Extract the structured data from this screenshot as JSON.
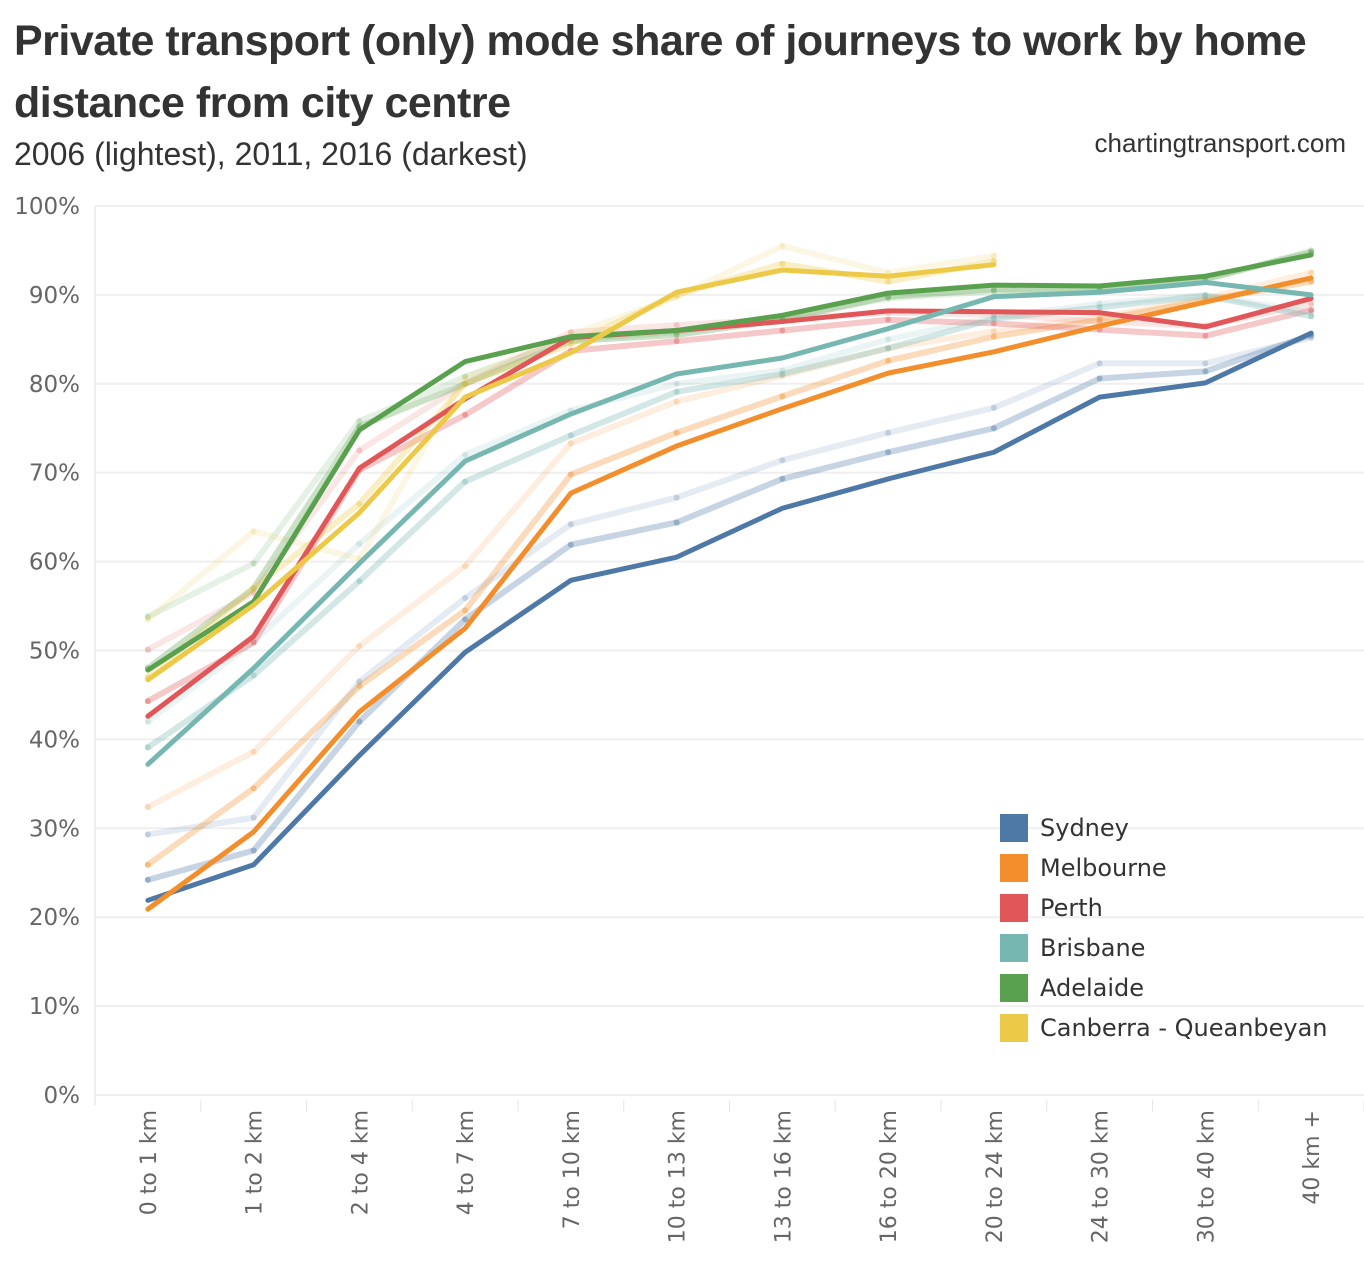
{
  "header": {
    "title": "Private transport (only) mode share of journeys to work by home distance from city centre",
    "subtitle": "2006 (lightest), 2011, 2016 (darkest)",
    "credit": "chartingtransport.com"
  },
  "chart_data": {
    "type": "line",
    "title": "Private transport (only) mode share of journeys to work by home distance from city centre",
    "subtitle": "2006 (lightest), 2011, 2016 (darkest)",
    "xlabel": "",
    "ylabel": "",
    "ylim": [
      0,
      100
    ],
    "y_ticks": [
      "0%",
      "10%",
      "20%",
      "30%",
      "40%",
      "50%",
      "60%",
      "70%",
      "80%",
      "90%",
      "100%"
    ],
    "grid": true,
    "legend_position": "bottom-right",
    "categories": [
      "0 to 1 km",
      "1 to 2 km",
      "2 to 4 km",
      "4 to 7 km",
      "7 to 10 km",
      "10 to 13 km",
      "13 to 16 km",
      "16 to 20 km",
      "20 to 24 km",
      "24 to 30 km",
      "30 to 40 km",
      "40 km +"
    ],
    "years": [
      "2006",
      "2011",
      "2016"
    ],
    "year_opacity_note": "2006 lightest, 2016 darkest",
    "series": [
      {
        "name": "Sydney",
        "color": "#4e79a7",
        "values": {
          "2006": [
            29.3,
            31.2,
            46.5,
            55.9,
            64.2,
            67.2,
            71.4,
            74.5,
            77.3,
            82.3,
            82.3,
            85.2
          ],
          "2011": [
            24.2,
            27.5,
            42.0,
            53.5,
            61.9,
            64.4,
            69.3,
            72.3,
            75.0,
            80.6,
            81.4,
            85.5
          ],
          "2016": [
            21.9,
            25.9,
            38.2,
            49.8,
            57.9,
            60.5,
            66.0,
            69.3,
            72.3,
            78.5,
            80.1,
            85.7
          ]
        }
      },
      {
        "name": "Melbourne",
        "color": "#f28e2b",
        "values": {
          "2006": [
            32.4,
            38.6,
            50.5,
            59.5,
            73.3,
            78.0,
            80.9,
            84.0,
            85.9,
            87.5,
            89.6,
            92.5
          ],
          "2011": [
            25.9,
            34.5,
            46.0,
            54.5,
            69.8,
            74.5,
            78.6,
            82.6,
            85.3,
            87.2,
            89.4,
            91.5
          ],
          "2016": [
            20.9,
            29.6,
            43.1,
            52.5,
            67.7,
            73.0,
            77.2,
            81.2,
            83.6,
            86.5,
            89.2,
            91.9
          ]
        }
      },
      {
        "name": "Perth",
        "color": "#e15759",
        "values": {
          "2006": [
            50.1,
            56.5,
            72.5,
            80.0,
            85.8,
            86.6,
            87.3,
            88.0,
            87.8,
            87.0,
            86.5,
            89.0
          ],
          "2011": [
            44.3,
            50.9,
            70.3,
            76.5,
            83.7,
            84.8,
            86.0,
            87.2,
            86.8,
            86.1,
            85.4,
            88.3
          ],
          "2016": [
            42.6,
            51.6,
            70.5,
            78.3,
            85.2,
            86.0,
            87.0,
            88.2,
            88.1,
            88.0,
            86.4,
            89.6
          ]
        }
      },
      {
        "name": "Brisbane",
        "color": "#76b7b2",
        "values": {
          "2006": [
            42.0,
            51.0,
            62.0,
            72.0,
            77.0,
            80.0,
            81.5,
            85.0,
            87.5,
            89.0,
            90.0,
            88.0
          ],
          "2011": [
            39.1,
            47.2,
            57.8,
            69.0,
            74.2,
            79.1,
            81.1,
            84.0,
            87.3,
            88.6,
            89.9,
            87.6
          ],
          "2016": [
            37.2,
            48.0,
            59.8,
            71.3,
            76.6,
            81.1,
            82.9,
            86.2,
            89.8,
            90.3,
            91.4,
            90.0
          ]
        }
      },
      {
        "name": "Adelaide",
        "color": "#59a14f",
        "values": {
          "2006": [
            53.8,
            59.8,
            75.8,
            80.8,
            85.0,
            85.8,
            87.5,
            89.6,
            90.4,
            90.5,
            91.6,
            95.0
          ],
          "2011": [
            48.0,
            57.0,
            75.2,
            80.0,
            84.8,
            85.5,
            87.2,
            89.8,
            90.6,
            90.6,
            91.8,
            94.8
          ],
          "2016": [
            47.8,
            55.5,
            74.8,
            82.5,
            85.3,
            86.0,
            87.7,
            90.2,
            91.1,
            91.0,
            92.1,
            94.5
          ]
        }
      },
      {
        "name": "Canberra - Queanbeyan",
        "color": "#edc948",
        "values": {
          "2006": [
            53.5,
            63.4,
            60.3,
            80.7,
            85.5,
            89.8,
            95.5,
            92.5,
            94.4
          ],
          "2011": [
            47.0,
            57.0,
            66.5,
            80.0,
            84.5,
            90.0,
            93.5,
            91.5,
            93.8
          ],
          "2016": [
            46.7,
            55.1,
            65.5,
            78.5,
            83.5,
            90.3,
            92.8,
            92.1,
            93.4
          ]
        }
      }
    ]
  },
  "legend": {
    "items": [
      {
        "label": "Sydney",
        "color": "#4e79a7"
      },
      {
        "label": "Melbourne",
        "color": "#f28e2b"
      },
      {
        "label": "Perth",
        "color": "#e15759"
      },
      {
        "label": "Brisbane",
        "color": "#76b7b2"
      },
      {
        "label": "Adelaide",
        "color": "#59a14f"
      },
      {
        "label": "Canberra - Queanbeyan",
        "color": "#edc948"
      }
    ]
  }
}
